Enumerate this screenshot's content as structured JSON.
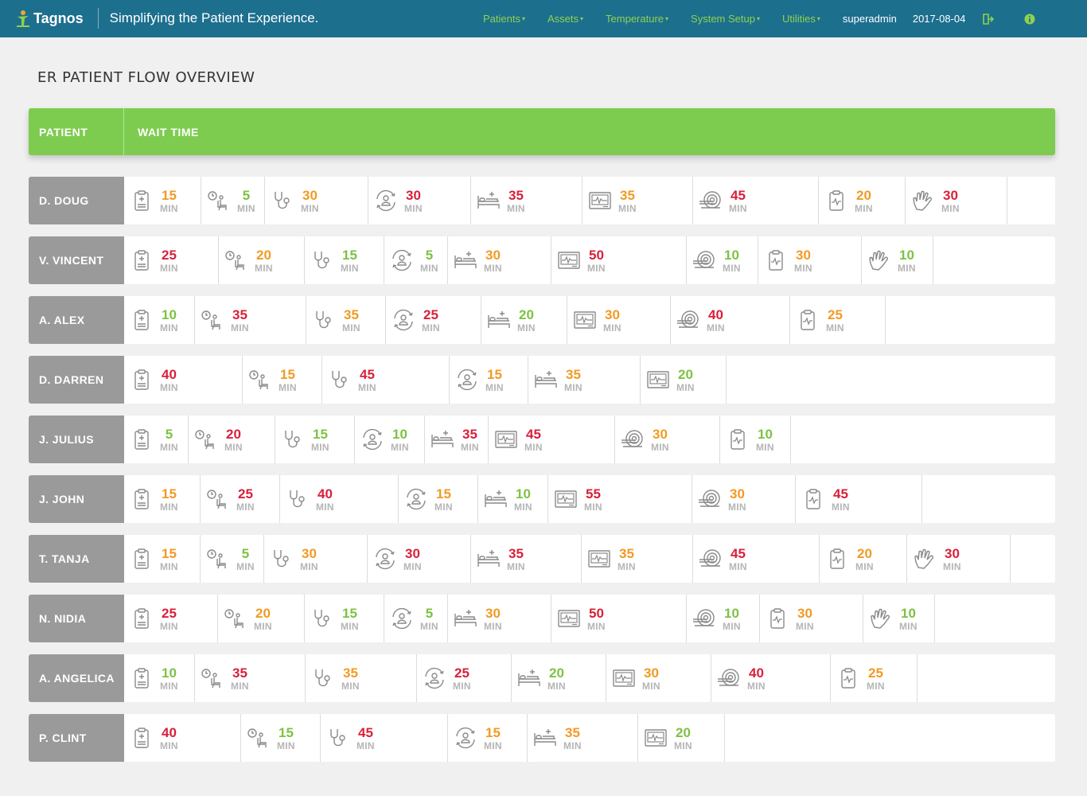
{
  "app": {
    "brand": "Tagnos",
    "tagline": "Simplifying the Patient Experience."
  },
  "nav": {
    "menus": [
      "Patients",
      "Assets",
      "Temperature",
      "System Setup",
      "Utilities"
    ],
    "caret": "▾",
    "user": "superadmin",
    "date": "2017-08-04",
    "icons": [
      "exit-icon",
      "info-icon"
    ]
  },
  "colors": {
    "topbar": "#1d6f8e",
    "accent_green": "#7dcc4f",
    "low": "#7dc243",
    "medium": "#f29a23",
    "high": "#d9203a",
    "patient_cell": "#9a9a9a"
  },
  "page": {
    "title": "ER PATIENT FLOW OVERVIEW"
  },
  "table": {
    "headers": {
      "patient": "PATIENT",
      "wait": "WAIT TIME"
    },
    "unit": "MIN",
    "stage_icons": [
      "clipboard-plus-icon",
      "waiting-room-icon",
      "stethoscope-icon",
      "patient-transfer-icon",
      "hospital-bed-icon",
      "monitor-icon",
      "ct-scanner-icon",
      "clipboard-pulse-icon",
      "gloved-hand-icon"
    ],
    "rows": [
      {
        "name": "D. DOUG",
        "stages": [
          {
            "icon": "clipboard-plus-icon",
            "value": "15",
            "level": "o"
          },
          {
            "icon": "waiting-room-icon",
            "value": "5",
            "level": "g"
          },
          {
            "icon": "stethoscope-icon",
            "value": "30",
            "level": "o"
          },
          {
            "icon": "patient-transfer-icon",
            "value": "30",
            "level": "r"
          },
          {
            "icon": "hospital-bed-icon",
            "value": "35",
            "level": "r"
          },
          {
            "icon": "monitor-icon",
            "value": "35",
            "level": "o"
          },
          {
            "icon": "ct-scanner-icon",
            "value": "45",
            "level": "r"
          },
          {
            "icon": "clipboard-pulse-icon",
            "value": "20",
            "level": "o"
          },
          {
            "icon": "gloved-hand-icon",
            "value": "30",
            "level": "r"
          }
        ]
      },
      {
        "name": "V. VINCENT",
        "stages": [
          {
            "icon": "clipboard-plus-icon",
            "value": "25",
            "level": "r"
          },
          {
            "icon": "waiting-room-icon",
            "value": "20",
            "level": "o"
          },
          {
            "icon": "stethoscope-icon",
            "value": "15",
            "level": "g"
          },
          {
            "icon": "patient-transfer-icon",
            "value": "5",
            "level": "g"
          },
          {
            "icon": "hospital-bed-icon",
            "value": "30",
            "level": "o"
          },
          {
            "icon": "monitor-icon",
            "value": "50",
            "level": "r"
          },
          {
            "icon": "ct-scanner-icon",
            "value": "10",
            "level": "g"
          },
          {
            "icon": "clipboard-pulse-icon",
            "value": "30",
            "level": "o"
          },
          {
            "icon": "gloved-hand-icon",
            "value": "10",
            "level": "g"
          }
        ]
      },
      {
        "name": "A. ALEX",
        "stages": [
          {
            "icon": "clipboard-plus-icon",
            "value": "10",
            "level": "g"
          },
          {
            "icon": "waiting-room-icon",
            "value": "35",
            "level": "r"
          },
          {
            "icon": "stethoscope-icon",
            "value": "35",
            "level": "o"
          },
          {
            "icon": "patient-transfer-icon",
            "value": "25",
            "level": "r"
          },
          {
            "icon": "hospital-bed-icon",
            "value": "20",
            "level": "g"
          },
          {
            "icon": "monitor-icon",
            "value": "30",
            "level": "o"
          },
          {
            "icon": "ct-scanner-icon",
            "value": "40",
            "level": "r"
          },
          {
            "icon": "clipboard-pulse-icon",
            "value": "25",
            "level": "o"
          }
        ]
      },
      {
        "name": "D. DARREN",
        "stages": [
          {
            "icon": "clipboard-plus-icon",
            "value": "40",
            "level": "r"
          },
          {
            "icon": "waiting-room-icon",
            "value": "15",
            "level": "o"
          },
          {
            "icon": "stethoscope-icon",
            "value": "45",
            "level": "r"
          },
          {
            "icon": "patient-transfer-icon",
            "value": "15",
            "level": "o"
          },
          {
            "icon": "hospital-bed-icon",
            "value": "35",
            "level": "o"
          },
          {
            "icon": "monitor-icon",
            "value": "20",
            "level": "g"
          }
        ]
      },
      {
        "name": "J. JULIUS",
        "stages": [
          {
            "icon": "clipboard-plus-icon",
            "value": "5",
            "level": "g"
          },
          {
            "icon": "waiting-room-icon",
            "value": "20",
            "level": "r"
          },
          {
            "icon": "stethoscope-icon",
            "value": "15",
            "level": "g"
          },
          {
            "icon": "patient-transfer-icon",
            "value": "10",
            "level": "g"
          },
          {
            "icon": "hospital-bed-icon",
            "value": "35",
            "level": "r"
          },
          {
            "icon": "monitor-icon",
            "value": "45",
            "level": "r"
          },
          {
            "icon": "ct-scanner-icon",
            "value": "30",
            "level": "o"
          },
          {
            "icon": "clipboard-pulse-icon",
            "value": "10",
            "level": "g"
          }
        ]
      },
      {
        "name": "J. JOHN",
        "stages": [
          {
            "icon": "clipboard-plus-icon",
            "value": "15",
            "level": "o"
          },
          {
            "icon": "waiting-room-icon",
            "value": "25",
            "level": "r"
          },
          {
            "icon": "stethoscope-icon",
            "value": "40",
            "level": "r"
          },
          {
            "icon": "patient-transfer-icon",
            "value": "15",
            "level": "o"
          },
          {
            "icon": "hospital-bed-icon",
            "value": "10",
            "level": "g"
          },
          {
            "icon": "monitor-icon",
            "value": "55",
            "level": "r"
          },
          {
            "icon": "ct-scanner-icon",
            "value": "30",
            "level": "o"
          },
          {
            "icon": "clipboard-pulse-icon",
            "value": "45",
            "level": "r"
          }
        ]
      },
      {
        "name": "T. TANJA",
        "stages": [
          {
            "icon": "clipboard-plus-icon",
            "value": "15",
            "level": "o"
          },
          {
            "icon": "waiting-room-icon",
            "value": "5",
            "level": "g"
          },
          {
            "icon": "stethoscope-icon",
            "value": "30",
            "level": "o"
          },
          {
            "icon": "patient-transfer-icon",
            "value": "30",
            "level": "r"
          },
          {
            "icon": "hospital-bed-icon",
            "value": "35",
            "level": "r"
          },
          {
            "icon": "monitor-icon",
            "value": "35",
            "level": "o"
          },
          {
            "icon": "ct-scanner-icon",
            "value": "45",
            "level": "r"
          },
          {
            "icon": "clipboard-pulse-icon",
            "value": "20",
            "level": "o"
          },
          {
            "icon": "gloved-hand-icon",
            "value": "30",
            "level": "r"
          }
        ]
      },
      {
        "name": "N. NIDIA",
        "stages": [
          {
            "icon": "clipboard-plus-icon",
            "value": "25",
            "level": "r"
          },
          {
            "icon": "waiting-room-icon",
            "value": "20",
            "level": "o"
          },
          {
            "icon": "stethoscope-icon",
            "value": "15",
            "level": "g"
          },
          {
            "icon": "patient-transfer-icon",
            "value": "5",
            "level": "g"
          },
          {
            "icon": "hospital-bed-icon",
            "value": "30",
            "level": "o"
          },
          {
            "icon": "monitor-icon",
            "value": "50",
            "level": "r"
          },
          {
            "icon": "ct-scanner-icon",
            "value": "10",
            "level": "g"
          },
          {
            "icon": "clipboard-pulse-icon",
            "value": "30",
            "level": "o"
          },
          {
            "icon": "gloved-hand-icon",
            "value": "10",
            "level": "g"
          }
        ]
      },
      {
        "name": "A. ANGELICA",
        "stages": [
          {
            "icon": "clipboard-plus-icon",
            "value": "10",
            "level": "g"
          },
          {
            "icon": "waiting-room-icon",
            "value": "35",
            "level": "r"
          },
          {
            "icon": "stethoscope-icon",
            "value": "35",
            "level": "o"
          },
          {
            "icon": "patient-transfer-icon",
            "value": "25",
            "level": "r"
          },
          {
            "icon": "hospital-bed-icon",
            "value": "20",
            "level": "g"
          },
          {
            "icon": "monitor-icon",
            "value": "30",
            "level": "o"
          },
          {
            "icon": "ct-scanner-icon",
            "value": "40",
            "level": "r"
          },
          {
            "icon": "clipboard-pulse-icon",
            "value": "25",
            "level": "o"
          }
        ]
      },
      {
        "name": "P. CLINT",
        "stages": [
          {
            "icon": "clipboard-plus-icon",
            "value": "40",
            "level": "r"
          },
          {
            "icon": "waiting-room-icon",
            "value": "15",
            "level": "g"
          },
          {
            "icon": "stethoscope-icon",
            "value": "45",
            "level": "r"
          },
          {
            "icon": "patient-transfer-icon",
            "value": "15",
            "level": "o"
          },
          {
            "icon": "hospital-bed-icon",
            "value": "35",
            "level": "o"
          },
          {
            "icon": "monitor-icon",
            "value": "20",
            "level": "g"
          }
        ]
      }
    ]
  }
}
